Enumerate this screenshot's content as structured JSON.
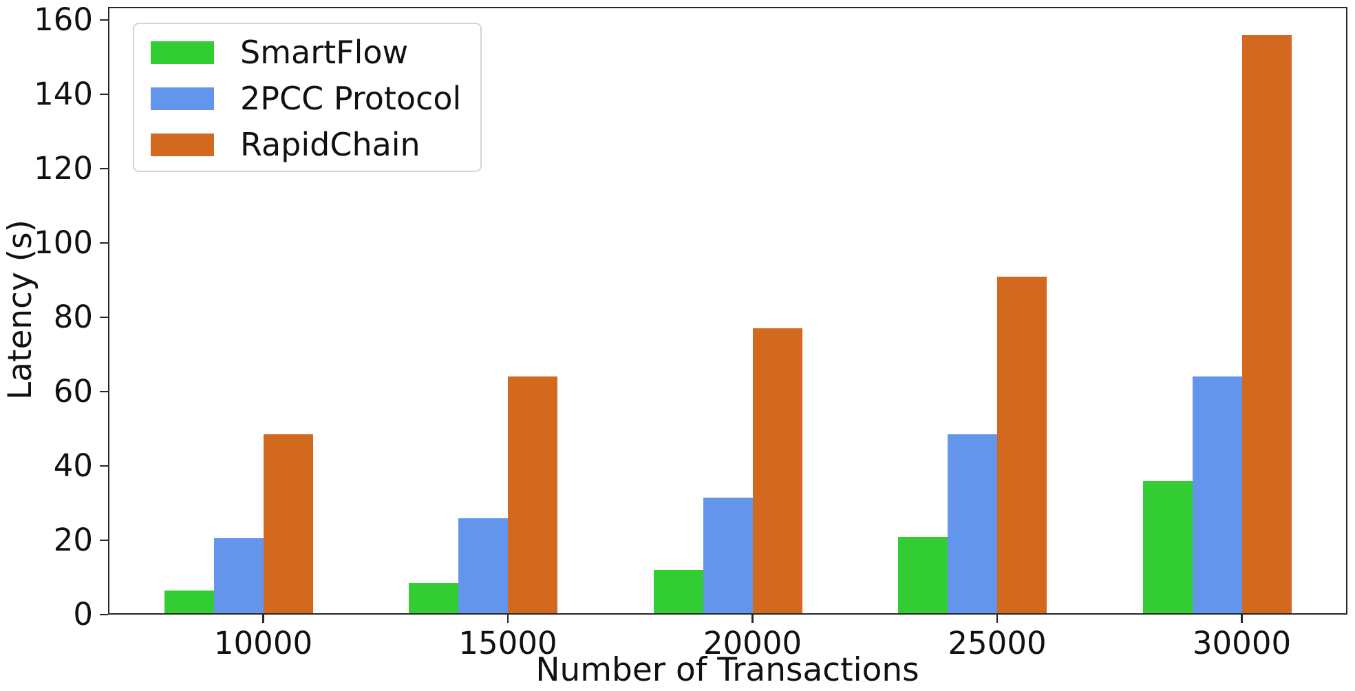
{
  "chart_data": {
    "type": "bar",
    "title": "",
    "xlabel": "Number of Transactions",
    "ylabel": "Latency (s)",
    "categories": [
      "10000",
      "15000",
      "20000",
      "25000",
      "30000"
    ],
    "series": [
      {
        "name": "SmartFlow",
        "color": "#32CD32",
        "values": [
          6.5,
          8.5,
          12,
          21,
          36
        ]
      },
      {
        "name": "2PCC Protocol",
        "color": "#6495ED",
        "values": [
          20.5,
          26,
          31.5,
          48.5,
          64
        ]
      },
      {
        "name": "RapidChain",
        "color": "#D2691E",
        "values": [
          48.5,
          64,
          77,
          91,
          156
        ]
      }
    ],
    "ylim": [
      0,
      163.5
    ],
    "yticks": [
      0,
      20,
      40,
      60,
      80,
      100,
      120,
      140,
      160
    ],
    "grid": false,
    "legend_position": "upper-left",
    "axis_color": "#262626",
    "background_color": "#ffffff"
  }
}
